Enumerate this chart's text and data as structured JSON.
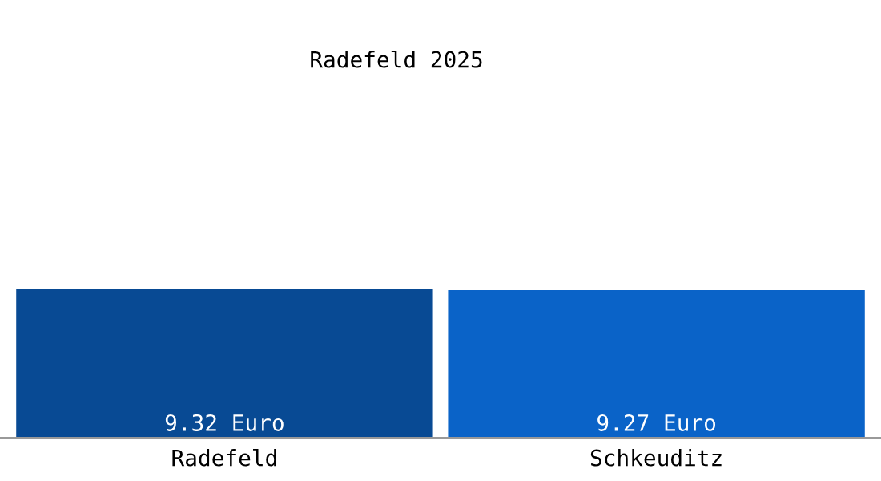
{
  "chart_data": {
    "type": "bar",
    "title": "Radefeld 2025",
    "categories": [
      "Radefeld",
      "Schkeuditz"
    ],
    "values": [
      9.32,
      9.27
    ],
    "colors": [
      "#084a94",
      "#0a63c8"
    ],
    "value_labels": [
      "9.32 Euro",
      "9.27 Euro"
    ],
    "tick_labels": "x",
    "grid": false,
    "legend": false
  }
}
